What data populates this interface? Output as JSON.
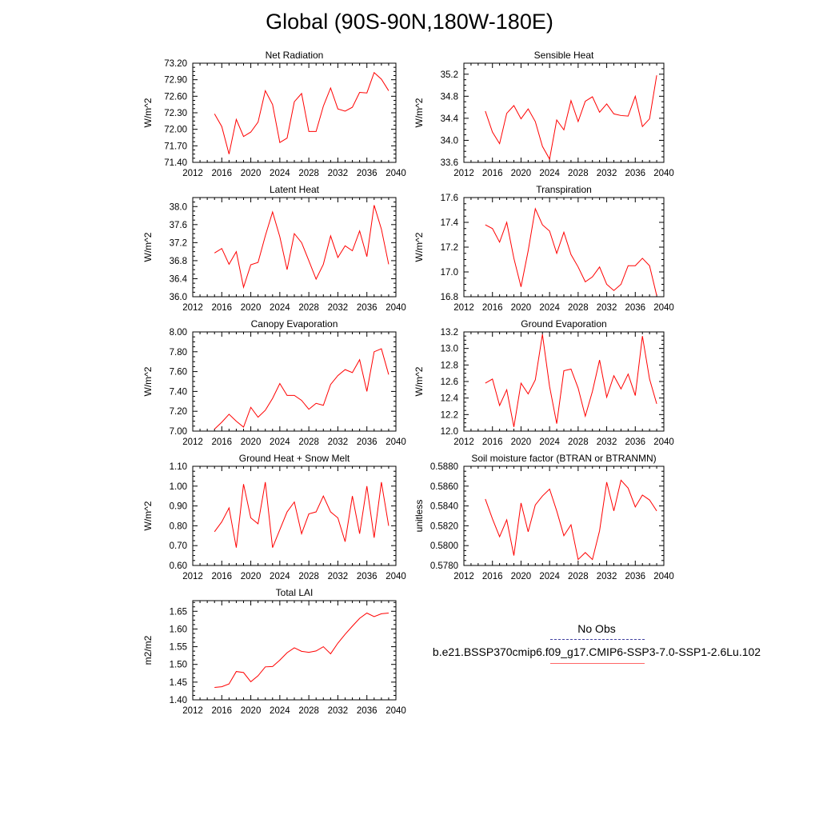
{
  "title": "Global (90S-90N,180W-180E)",
  "colors": {
    "model_line": "#ff0000",
    "obs_line": "#4040a0",
    "axis": "#000000"
  },
  "legend": {
    "obs_label": "No Obs",
    "model_label": "b.e21.BSSP370cmip6.f09_g17.CMIP6-SSP3-7.0-SSP1-2.6Lu.102"
  },
  "chart_data": [
    {
      "type": "line",
      "title": "Net Radiation",
      "ylabel": "W/m^2",
      "xlim": [
        2012,
        2040
      ],
      "ylim": [
        71.4,
        73.2
      ],
      "xticks": [
        "2012",
        "2016",
        "2020",
        "2024",
        "2028",
        "2032",
        "2036",
        "2040"
      ],
      "yticks": [
        "71.40",
        "71.70",
        "72.00",
        "72.30",
        "72.60",
        "72.90",
        "73.20"
      ],
      "x": [
        2015,
        2016,
        2017,
        2018,
        2019,
        2020,
        2021,
        2022,
        2023,
        2024,
        2025,
        2026,
        2027,
        2028,
        2029,
        2030,
        2031,
        2032,
        2033,
        2034,
        2035,
        2036,
        2037,
        2038,
        2039
      ],
      "series": [
        {
          "values": [
            72.28,
            72.05,
            71.55,
            72.18,
            71.87,
            71.95,
            72.13,
            72.7,
            72.45,
            71.76,
            71.84,
            72.5,
            72.65,
            71.96,
            71.96,
            72.42,
            72.75,
            72.37,
            72.33,
            72.4,
            72.67,
            72.66,
            73.03,
            72.91,
            72.7
          ]
        }
      ]
    },
    {
      "type": "line",
      "title": "Sensible Heat",
      "ylabel": "W/m^2",
      "xlim": [
        2012,
        2040
      ],
      "ylim": [
        33.6,
        35.4
      ],
      "xticks": [
        "2012",
        "2016",
        "2020",
        "2024",
        "2028",
        "2032",
        "2036",
        "2040"
      ],
      "yticks": [
        "33.6",
        "34.0",
        "34.4",
        "34.8",
        "35.2"
      ],
      "x": [
        2015,
        2016,
        2017,
        2018,
        2019,
        2020,
        2021,
        2022,
        2023,
        2024,
        2025,
        2026,
        2027,
        2028,
        2029,
        2030,
        2031,
        2032,
        2033,
        2034,
        2035,
        2036,
        2037,
        2038,
        2039
      ],
      "series": [
        {
          "values": [
            34.53,
            34.15,
            33.94,
            34.49,
            34.63,
            34.39,
            34.57,
            34.34,
            33.89,
            33.66,
            34.37,
            34.19,
            34.72,
            34.34,
            34.71,
            34.79,
            34.51,
            34.66,
            34.48,
            34.45,
            34.44,
            34.8,
            34.25,
            34.39,
            35.18
          ]
        }
      ]
    },
    {
      "type": "line",
      "title": "Latent Heat",
      "ylabel": "W/m^2",
      "xlim": [
        2012,
        2040
      ],
      "ylim": [
        36.0,
        38.2
      ],
      "xticks": [
        "2012",
        "2016",
        "2020",
        "2024",
        "2028",
        "2032",
        "2036",
        "2040"
      ],
      "yticks": [
        "36.0",
        "36.4",
        "36.8",
        "37.2",
        "37.6",
        "38.0"
      ],
      "x": [
        2015,
        2016,
        2017,
        2018,
        2019,
        2020,
        2021,
        2022,
        2023,
        2024,
        2025,
        2026,
        2027,
        2028,
        2029,
        2030,
        2031,
        2032,
        2033,
        2034,
        2035,
        2036,
        2037,
        2038,
        2039
      ],
      "series": [
        {
          "values": [
            36.97,
            37.07,
            36.72,
            37.0,
            36.21,
            36.71,
            36.76,
            37.35,
            37.88,
            37.33,
            36.6,
            37.4,
            37.2,
            36.8,
            36.39,
            36.72,
            37.35,
            36.87,
            37.13,
            37.02,
            37.46,
            36.89,
            38.03,
            37.5,
            36.72
          ]
        }
      ]
    },
    {
      "type": "line",
      "title": "Transpiration",
      "ylabel": "W/m^2",
      "xlim": [
        2012,
        2040
      ],
      "ylim": [
        16.8,
        17.6
      ],
      "xticks": [
        "2012",
        "2016",
        "2020",
        "2024",
        "2028",
        "2032",
        "2036",
        "2040"
      ],
      "yticks": [
        "16.8",
        "17.0",
        "17.2",
        "17.4",
        "17.6"
      ],
      "x": [
        2015,
        2016,
        2017,
        2018,
        2019,
        2020,
        2021,
        2022,
        2023,
        2024,
        2025,
        2026,
        2027,
        2028,
        2029,
        2030,
        2031,
        2032,
        2033,
        2034,
        2035,
        2036,
        2037,
        2038,
        2039
      ],
      "series": [
        {
          "values": [
            17.38,
            17.35,
            17.24,
            17.4,
            17.11,
            16.88,
            17.17,
            17.51,
            17.38,
            17.33,
            17.15,
            17.32,
            17.14,
            17.04,
            16.92,
            16.96,
            17.04,
            16.9,
            16.85,
            16.9,
            17.05,
            17.05,
            17.11,
            17.05,
            16.81
          ]
        }
      ]
    },
    {
      "type": "line",
      "title": "Canopy Evaporation",
      "ylabel": "W/m^2",
      "xlim": [
        2012,
        2040
      ],
      "ylim": [
        7.0,
        8.0
      ],
      "xticks": [
        "2012",
        "2016",
        "2020",
        "2024",
        "2028",
        "2032",
        "2036",
        "2040"
      ],
      "yticks": [
        "7.00",
        "7.20",
        "7.40",
        "7.60",
        "7.80",
        "8.00"
      ],
      "x": [
        2015,
        2016,
        2017,
        2018,
        2019,
        2020,
        2021,
        2022,
        2023,
        2024,
        2025,
        2026,
        2027,
        2028,
        2029,
        2030,
        2031,
        2032,
        2033,
        2034,
        2035,
        2036,
        2037,
        2038,
        2039
      ],
      "series": [
        {
          "values": [
            7.02,
            7.09,
            7.17,
            7.1,
            7.04,
            7.24,
            7.14,
            7.21,
            7.33,
            7.48,
            7.36,
            7.36,
            7.31,
            7.22,
            7.28,
            7.26,
            7.47,
            7.56,
            7.62,
            7.59,
            7.72,
            7.4,
            7.8,
            7.83,
            7.57
          ]
        }
      ]
    },
    {
      "type": "line",
      "title": "Ground Evaporation",
      "ylabel": "W/m^2",
      "xlim": [
        2012,
        2040
      ],
      "ylim": [
        12.0,
        13.2
      ],
      "xticks": [
        "2012",
        "2016",
        "2020",
        "2024",
        "2028",
        "2032",
        "2036",
        "2040"
      ],
      "yticks": [
        "12.0",
        "12.2",
        "12.4",
        "12.6",
        "12.8",
        "13.0",
        "13.2"
      ],
      "x": [
        2015,
        2016,
        2017,
        2018,
        2019,
        2020,
        2021,
        2022,
        2023,
        2024,
        2025,
        2026,
        2027,
        2028,
        2029,
        2030,
        2031,
        2032,
        2033,
        2034,
        2035,
        2036,
        2037,
        2038,
        2039
      ],
      "series": [
        {
          "values": [
            12.58,
            12.63,
            12.31,
            12.5,
            12.05,
            12.58,
            12.45,
            12.62,
            13.17,
            12.54,
            12.09,
            12.73,
            12.75,
            12.52,
            12.18,
            12.48,
            12.86,
            12.41,
            12.67,
            12.51,
            12.69,
            12.43,
            13.15,
            12.63,
            12.33
          ]
        }
      ]
    },
    {
      "type": "line",
      "title": "Ground Heat + Snow Melt",
      "ylabel": "W/m^2",
      "xlim": [
        2012,
        2040
      ],
      "ylim": [
        0.6,
        1.1
      ],
      "xticks": [
        "2012",
        "2016",
        "2020",
        "2024",
        "2028",
        "2032",
        "2036",
        "2040"
      ],
      "yticks": [
        "0.60",
        "0.70",
        "0.80",
        "0.90",
        "1.00",
        "1.10"
      ],
      "x": [
        2015,
        2016,
        2017,
        2018,
        2019,
        2020,
        2021,
        2022,
        2023,
        2024,
        2025,
        2026,
        2027,
        2028,
        2029,
        2030,
        2031,
        2032,
        2033,
        2034,
        2035,
        2036,
        2037,
        2038,
        2039
      ],
      "series": [
        {
          "values": [
            0.77,
            0.82,
            0.89,
            0.69,
            1.01,
            0.84,
            0.81,
            1.02,
            0.69,
            0.78,
            0.87,
            0.92,
            0.76,
            0.86,
            0.87,
            0.95,
            0.87,
            0.84,
            0.72,
            0.95,
            0.76,
            1.0,
            0.74,
            1.02,
            0.8
          ]
        }
      ]
    },
    {
      "type": "line",
      "title": "Soil moisture factor (BTRAN or BTRANMN)",
      "ylabel": "unitless",
      "xlim": [
        2012,
        2040
      ],
      "ylim": [
        0.578,
        0.588
      ],
      "xticks": [
        "2012",
        "2016",
        "2020",
        "2024",
        "2028",
        "2032",
        "2036",
        "2040"
      ],
      "yticks": [
        "0.5780",
        "0.5800",
        "0.5820",
        "0.5840",
        "0.5860",
        "0.5880"
      ],
      "x": [
        2015,
        2016,
        2017,
        2018,
        2019,
        2020,
        2021,
        2022,
        2023,
        2024,
        2025,
        2026,
        2027,
        2028,
        2029,
        2030,
        2031,
        2032,
        2033,
        2034,
        2035,
        2036,
        2037,
        2038,
        2039
      ],
      "series": [
        {
          "values": [
            0.5847,
            0.5827,
            0.5809,
            0.5826,
            0.579,
            0.5843,
            0.5814,
            0.5841,
            0.585,
            0.5857,
            0.5835,
            0.581,
            0.5821,
            0.5786,
            0.5793,
            0.5786,
            0.5815,
            0.5864,
            0.5835,
            0.5866,
            0.5858,
            0.5839,
            0.5851,
            0.5846,
            0.5835
          ]
        }
      ]
    },
    {
      "type": "line",
      "title": "Total LAI",
      "ylabel": "m2/m2",
      "xlim": [
        2012,
        2040
      ],
      "ylim": [
        1.4,
        1.68
      ],
      "xticks": [
        "2012",
        "2016",
        "2020",
        "2024",
        "2028",
        "2032",
        "2036",
        "2040"
      ],
      "yticks": [
        "1.40",
        "1.45",
        "1.50",
        "1.55",
        "1.60",
        "1.65"
      ],
      "x": [
        2015,
        2016,
        2017,
        2018,
        2019,
        2020,
        2021,
        2022,
        2023,
        2024,
        2025,
        2026,
        2027,
        2028,
        2029,
        2030,
        2031,
        2032,
        2033,
        2034,
        2035,
        2036,
        2037,
        2038,
        2039
      ],
      "series": [
        {
          "values": [
            1.435,
            1.437,
            1.445,
            1.48,
            1.477,
            1.451,
            1.468,
            1.493,
            1.494,
            1.512,
            1.533,
            1.547,
            1.537,
            1.534,
            1.538,
            1.55,
            1.53,
            1.56,
            1.585,
            1.608,
            1.63,
            1.645,
            1.635,
            1.643,
            1.645
          ]
        }
      ]
    }
  ]
}
